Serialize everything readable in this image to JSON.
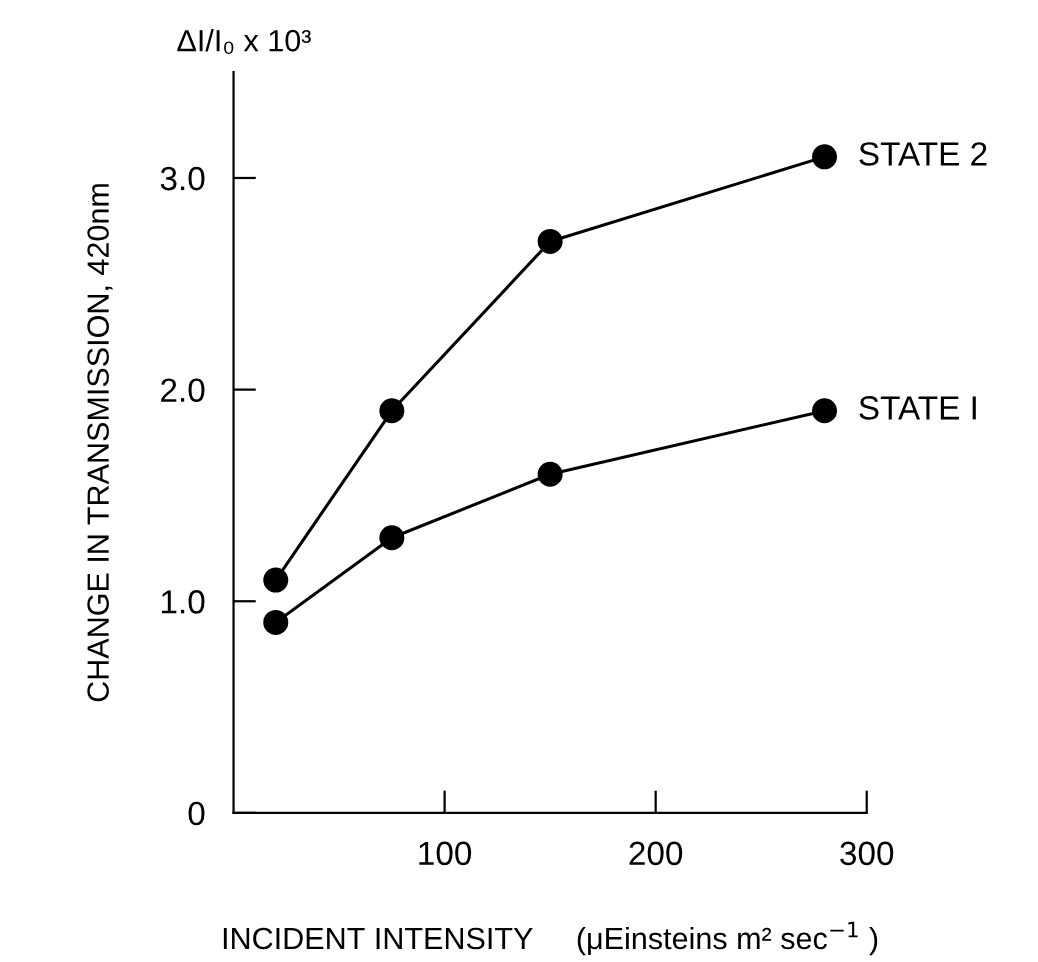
{
  "chart_data": {
    "type": "line",
    "xlabel": "INCIDENT INTENSITY     (μEinsteins m² sec$^{−1}$ )",
    "ylabel": "CHANGE IN TRANSMISSION, 420nm",
    "annotations": [
      "ΔI/I₀ x 10³"
    ],
    "x": [
      20,
      75,
      150,
      280
    ],
    "series": [
      {
        "name": "STATE 2",
        "color": "#000000",
        "values": [
          1.1,
          1.9,
          2.7,
          3.1
        ]
      },
      {
        "name": "STATE I",
        "color": "#000000",
        "values": [
          0.9,
          1.3,
          1.6,
          1.9
        ]
      }
    ],
    "xlim": [
      0,
      300
    ],
    "ylim": [
      0,
      3.5
    ],
    "xticks": [
      100,
      200,
      300
    ],
    "yticks": [
      0,
      {
        "value": 1,
        "label": "1.0"
      },
      {
        "value": 2,
        "label": "2.0"
      },
      {
        "value": 3,
        "label": "3.0"
      }
    ],
    "marker": "circle",
    "line_style": "solid",
    "grid": false,
    "legend": false
  }
}
